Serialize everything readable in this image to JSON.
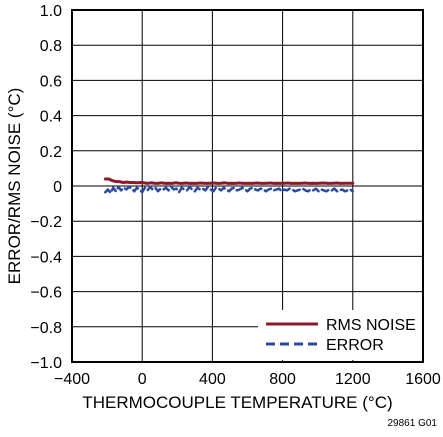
{
  "chart_data": {
    "type": "line",
    "xlabel": "THERMOCOUPLE TEMPERATURE (°C)",
    "ylabel": "ERROR/RMS NOISE (°C)",
    "xlim": [
      -400,
      1600
    ],
    "ylim": [
      -1.0,
      1.0
    ],
    "x_ticks": [
      "−400",
      "0",
      "400",
      "800",
      "1200",
      "1600"
    ],
    "y_ticks": [
      "1.0",
      "0.8",
      "0.6",
      "0.4",
      "0.2",
      "0",
      "−0.2",
      "−0.4",
      "−0.6",
      "−0.8",
      "−1.0"
    ],
    "grid": true,
    "legend_position": "bottom-right",
    "figure_id": "29861 G01",
    "series": [
      {
        "name": "RMS NOISE",
        "color": "#8b1a2b",
        "style": "solid",
        "x": [
          -210,
          -190,
          -170,
          -150,
          -130,
          -110,
          -90,
          -70,
          -50,
          -30,
          -10,
          10,
          30,
          50,
          70,
          90,
          110,
          130,
          150,
          170,
          190,
          210,
          230,
          250,
          270,
          290,
          310,
          330,
          350,
          370,
          390,
          410,
          430,
          450,
          470,
          490,
          510,
          530,
          550,
          570,
          590,
          610,
          630,
          650,
          670,
          690,
          710,
          730,
          750,
          770,
          790,
          810,
          830,
          850,
          870,
          890,
          910,
          930,
          950,
          970,
          990,
          1010,
          1030,
          1050,
          1070,
          1090,
          1110,
          1130,
          1150,
          1170,
          1200
        ],
        "y": [
          0.04,
          0.04,
          0.03,
          0.025,
          0.025,
          0.02,
          0.022,
          0.02,
          0.02,
          0.018,
          0.02,
          0.018,
          0.015,
          0.018,
          0.016,
          0.015,
          0.018,
          0.015,
          0.016,
          0.015,
          0.018,
          0.016,
          0.015,
          0.017,
          0.015,
          0.016,
          0.015,
          0.017,
          0.016,
          0.015,
          0.016,
          0.017,
          0.015,
          0.016,
          0.018,
          0.015,
          0.016,
          0.015,
          0.017,
          0.016,
          0.015,
          0.016,
          0.015,
          0.017,
          0.016,
          0.015,
          0.016,
          0.017,
          0.015,
          0.016,
          0.015,
          0.016,
          0.017,
          0.015,
          0.016,
          0.015,
          0.016,
          0.017,
          0.015,
          0.016,
          0.015,
          0.016,
          0.017,
          0.016,
          0.015,
          0.016,
          0.017,
          0.015,
          0.016,
          0.016,
          0.016
        ]
      },
      {
        "name": "ERROR",
        "color": "#2b4aa0",
        "style": "dashed",
        "x": [
          -210,
          -195,
          -180,
          -165,
          -150,
          -135,
          -120,
          -105,
          -90,
          -75,
          -60,
          -45,
          -30,
          -15,
          0,
          15,
          30,
          45,
          60,
          75,
          90,
          105,
          120,
          135,
          150,
          165,
          180,
          195,
          210,
          225,
          240,
          255,
          270,
          285,
          300,
          315,
          330,
          345,
          360,
          375,
          390,
          405,
          420,
          435,
          450,
          465,
          480,
          495,
          510,
          525,
          540,
          555,
          570,
          585,
          600,
          615,
          630,
          645,
          660,
          675,
          690,
          705,
          720,
          735,
          750,
          765,
          780,
          795,
          810,
          825,
          840,
          855,
          870,
          885,
          900,
          915,
          930,
          945,
          960,
          975,
          990,
          1005,
          1020,
          1035,
          1050,
          1065,
          1080,
          1095,
          1110,
          1125,
          1140,
          1155,
          1170,
          1185,
          1200
        ],
        "y": [
          -0.035,
          -0.02,
          -0.04,
          -0.01,
          -0.03,
          -0.005,
          -0.025,
          -0.01,
          -0.02,
          -0.005,
          -0.015,
          -0.03,
          -0.01,
          -0.02,
          -0.035,
          -0.01,
          -0.025,
          -0.005,
          -0.02,
          -0.01,
          -0.03,
          -0.015,
          -0.02,
          -0.01,
          -0.025,
          -0.005,
          -0.02,
          -0.015,
          -0.035,
          -0.01,
          -0.02,
          -0.025,
          -0.005,
          -0.02,
          -0.03,
          -0.01,
          -0.02,
          -0.015,
          -0.025,
          -0.005,
          -0.02,
          -0.03,
          -0.01,
          -0.015,
          -0.025,
          -0.01,
          -0.02,
          -0.03,
          -0.015,
          -0.01,
          -0.025,
          -0.02,
          -0.01,
          -0.02,
          -0.03,
          -0.015,
          -0.01,
          -0.02,
          -0.025,
          -0.015,
          -0.02,
          -0.03,
          -0.02,
          -0.015,
          -0.025,
          -0.02,
          -0.015,
          -0.03,
          -0.02,
          -0.025,
          -0.015,
          -0.02,
          -0.03,
          -0.025,
          -0.02,
          -0.015,
          -0.025,
          -0.03,
          -0.02,
          -0.025,
          -0.015,
          -0.03,
          -0.02,
          -0.025,
          -0.03,
          -0.02,
          -0.025,
          -0.015,
          -0.03,
          -0.025,
          -0.02,
          -0.03,
          -0.025,
          -0.02,
          -0.03
        ]
      }
    ]
  }
}
